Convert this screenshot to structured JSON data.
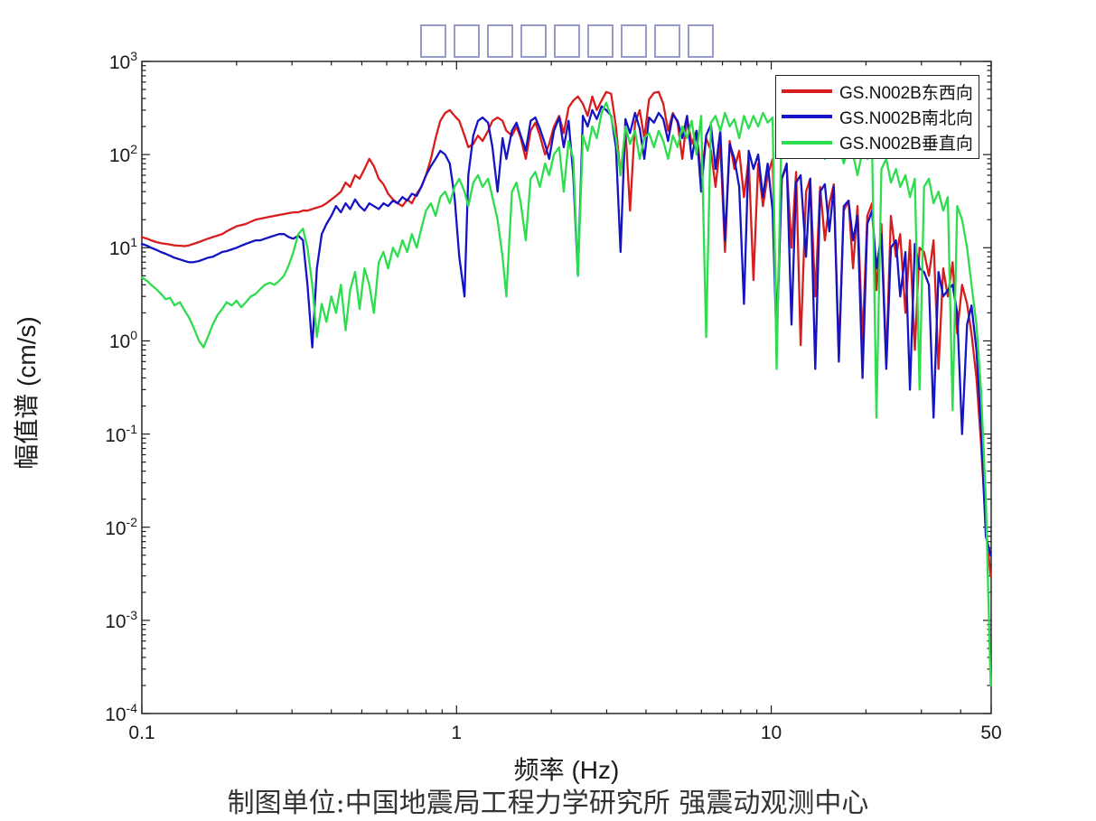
{
  "page": {
    "background": "#ffffff"
  },
  "title": {
    "rendered_as": "missing-glyph-boxes",
    "box_count": 9,
    "box_color": "#989bc9"
  },
  "axis": {
    "x_label": "频率 (Hz)",
    "y_label": "幅值谱 (cm/s)",
    "x_min": 0.1,
    "x_max": 50,
    "y_min": 0.0001,
    "y_max": 1000,
    "x_tick_labels": [
      {
        "value": 0.1,
        "label": "0.1"
      },
      {
        "value": 1,
        "label": "1"
      },
      {
        "value": 10,
        "label": "10"
      },
      {
        "value": 50,
        "label": "50"
      }
    ],
    "y_tick_exponents": [
      3,
      2,
      1,
      0,
      -1,
      -2,
      -3,
      -4
    ]
  },
  "credit": "制图单位:中国地震局工程力学研究所 强震动观测中心",
  "chart_data": {
    "type": "line",
    "xscale": "log",
    "yscale": "log",
    "title": "",
    "xlabel": "频率 (Hz)",
    "ylabel": "幅值谱 (cm/s)",
    "xlim": [
      0.1,
      50
    ],
    "ylim": [
      0.0001,
      1000
    ],
    "grid": false,
    "legend_position": "top-right",
    "x": [
      0.1,
      0.104,
      0.107,
      0.111,
      0.115,
      0.119,
      0.123,
      0.127,
      0.132,
      0.137,
      0.141,
      0.146,
      0.152,
      0.157,
      0.162,
      0.168,
      0.174,
      0.18,
      0.186,
      0.193,
      0.2,
      0.207,
      0.214,
      0.222,
      0.23,
      0.238,
      0.246,
      0.255,
      0.264,
      0.273,
      0.283,
      0.293,
      0.303,
      0.314,
      0.325,
      0.336,
      0.348,
      0.36,
      0.373,
      0.386,
      0.4,
      0.414,
      0.429,
      0.444,
      0.459,
      0.476,
      0.492,
      0.51,
      0.528,
      0.546,
      0.566,
      0.586,
      0.606,
      0.628,
      0.65,
      0.673,
      0.697,
      0.721,
      0.747,
      0.773,
      0.8,
      0.829,
      0.858,
      0.888,
      0.92,
      0.952,
      0.986,
      1.02,
      1.06,
      1.09,
      1.13,
      1.17,
      1.21,
      1.26,
      1.3,
      1.35,
      1.4,
      1.44,
      1.5,
      1.55,
      1.6,
      1.66,
      1.72,
      1.78,
      1.84,
      1.91,
      1.97,
      2.04,
      2.12,
      2.19,
      2.27,
      2.35,
      2.43,
      2.52,
      2.61,
      2.7,
      2.79,
      2.89,
      2.99,
      3.1,
      3.21,
      3.32,
      3.44,
      3.56,
      3.69,
      3.82,
      3.95,
      4.09,
      4.24,
      4.39,
      4.54,
      4.7,
      4.87,
      5.04,
      5.22,
      5.4,
      5.59,
      5.79,
      5.99,
      6.21,
      6.43,
      6.65,
      6.89,
      7.13,
      7.38,
      7.64,
      7.91,
      8.19,
      8.48,
      8.78,
      9.09,
      9.41,
      9.74,
      10.1,
      10.4,
      10.8,
      11.2,
      11.6,
      12,
      12.4,
      12.9,
      13.3,
      13.8,
      14.3,
      14.8,
      15.3,
      15.8,
      16.4,
      17,
      17.6,
      18.2,
      18.8,
      19.5,
      20.2,
      20.9,
      21.6,
      22.4,
      23.2,
      24,
      24.9,
      25.7,
      26.7,
      27.6,
      28.6,
      29.6,
      30.6,
      31.7,
      32.8,
      34,
      35.2,
      36.4,
      37.7,
      39,
      40.4,
      41.9,
      43.3,
      44.9,
      46.4,
      48.1,
      49.8
    ],
    "series": [
      {
        "name": "GS.N002B东西向",
        "color": "#d81d1d",
        "values": [
          13,
          12.5,
          12,
          11.5,
          11.2,
          11,
          10.8,
          10.6,
          10.5,
          10.4,
          10.6,
          11,
          11.5,
          12,
          12.5,
          13,
          13.5,
          14,
          15,
          16,
          17,
          17.5,
          18,
          19,
          20,
          20.5,
          21,
          21.5,
          22,
          22.5,
          23,
          23.5,
          24,
          24,
          25,
          25,
          26,
          27,
          28,
          30,
          33,
          36,
          40,
          50,
          45,
          60,
          55,
          70,
          90,
          75,
          55,
          48,
          38,
          33,
          30,
          28,
          33,
          30,
          38,
          45,
          60,
          90,
          150,
          230,
          280,
          300,
          260,
          230,
          160,
          120,
          130,
          160,
          140,
          180,
          230,
          250,
          230,
          180,
          160,
          200,
          150,
          90,
          180,
          220,
          160,
          100,
          130,
          200,
          260,
          170,
          320,
          380,
          420,
          350,
          260,
          420,
          300,
          380,
          470,
          450,
          200,
          60,
          190,
          25,
          220,
          300,
          150,
          390,
          460,
          470,
          350,
          180,
          280,
          220,
          90,
          250,
          130,
          180,
          60,
          150,
          110,
          45,
          130,
          9,
          140,
          70,
          110,
          35,
          90,
          4.5,
          80,
          28,
          60,
          90,
          1.3,
          55,
          75,
          10,
          65,
          0.9,
          40,
          55,
          3,
          45,
          12,
          30,
          48,
          0.7,
          25,
          32,
          6,
          28,
          1,
          22,
          30,
          3.5,
          18,
          0.6,
          22,
          8,
          14,
          2,
          12,
          0.8,
          10,
          9,
          5,
          12,
          0.5,
          6,
          3,
          7,
          1.2,
          4,
          2.5,
          1.2,
          0.4,
          0.08,
          0.01,
          0.003
        ]
      },
      {
        "name": "GS.N002B南北向",
        "color": "#1414c4",
        "values": [
          11,
          10.5,
          10,
          9.5,
          9,
          8.6,
          8.2,
          7.8,
          7.5,
          7.2,
          7,
          7,
          7.2,
          7.5,
          7.8,
          8,
          8.5,
          9,
          9.2,
          9.6,
          10,
          10.5,
          11,
          11.5,
          12,
          12,
          12.5,
          13,
          13.5,
          14,
          14,
          13,
          12.5,
          13.5,
          12,
          4,
          0.85,
          6,
          14,
          18,
          22,
          28,
          24,
          30,
          26,
          33,
          28,
          25,
          30,
          28,
          26,
          30,
          28,
          32,
          30,
          35,
          32,
          38,
          36,
          45,
          60,
          75,
          90,
          110,
          100,
          80,
          35,
          8,
          3,
          60,
          160,
          230,
          250,
          220,
          120,
          40,
          150,
          90,
          180,
          220,
          160,
          110,
          230,
          250,
          190,
          130,
          90,
          180,
          250,
          120,
          230,
          60,
          5,
          260,
          200,
          300,
          240,
          330,
          300,
          260,
          120,
          9,
          240,
          170,
          280,
          190,
          90,
          250,
          220,
          280,
          240,
          140,
          270,
          230,
          150,
          260,
          90,
          180,
          40,
          160,
          210,
          70,
          180,
          12,
          130,
          90,
          45,
          2.5,
          110,
          70,
          100,
          35,
          80,
          25,
          0.9,
          55,
          80,
          1.5,
          50,
          60,
          8,
          55,
          0.5,
          40,
          48,
          15,
          45,
          0.6,
          28,
          32,
          12,
          22,
          0.4,
          18,
          25,
          6,
          14,
          0.5,
          10,
          12,
          3,
          9,
          0.3,
          11,
          6,
          5.5,
          4,
          0.15,
          5.5,
          3,
          3.5,
          4,
          2,
          0.1,
          1.5,
          2.4,
          0.8,
          0.12,
          0.008,
          0.005
        ]
      },
      {
        "name": "GS.N002B垂直向",
        "color": "#2edd4d",
        "values": [
          4.8,
          4.4,
          4,
          3.6,
          3.2,
          2.8,
          2.9,
          2.4,
          2.6,
          2.1,
          1.8,
          1.4,
          1,
          0.85,
          1.1,
          1.5,
          1.9,
          2.2,
          2.6,
          2.4,
          2.7,
          2.3,
          2.6,
          3,
          3.2,
          3.6,
          4,
          4.2,
          4,
          4.4,
          5,
          6.5,
          9,
          14,
          16,
          10,
          4,
          1.1,
          2.5,
          1.6,
          3,
          2,
          4,
          1.3,
          3.5,
          5.5,
          2.2,
          6,
          4,
          2,
          7,
          9,
          6,
          10,
          8,
          12,
          9,
          14,
          10,
          16,
          25,
          30,
          22,
          35,
          40,
          30,
          45,
          55,
          40,
          28,
          50,
          60,
          45,
          55,
          35,
          20,
          8,
          3,
          40,
          50,
          30,
          12,
          55,
          65,
          45,
          80,
          60,
          100,
          120,
          40,
          140,
          90,
          5,
          160,
          110,
          200,
          150,
          280,
          360,
          250,
          150,
          60,
          200,
          130,
          180,
          90,
          150,
          170,
          120,
          180,
          140,
          90,
          160,
          120,
          200,
          150,
          230,
          100,
          260,
          1.1,
          220,
          260,
          180,
          280,
          200,
          240,
          150,
          260,
          190,
          260,
          200,
          280,
          220,
          250,
          0.5,
          230,
          180,
          240,
          160,
          210,
          120,
          190,
          140,
          160,
          90,
          150,
          110,
          130,
          80,
          120,
          100,
          60,
          110,
          90,
          130,
          0.15,
          70,
          90,
          50,
          70,
          45,
          60,
          35,
          55,
          0.3,
          45,
          55,
          30,
          40,
          25,
          35,
          0.18,
          28,
          20,
          10,
          4,
          1.5,
          0.3,
          0.02,
          0.0002
        ]
      }
    ]
  }
}
